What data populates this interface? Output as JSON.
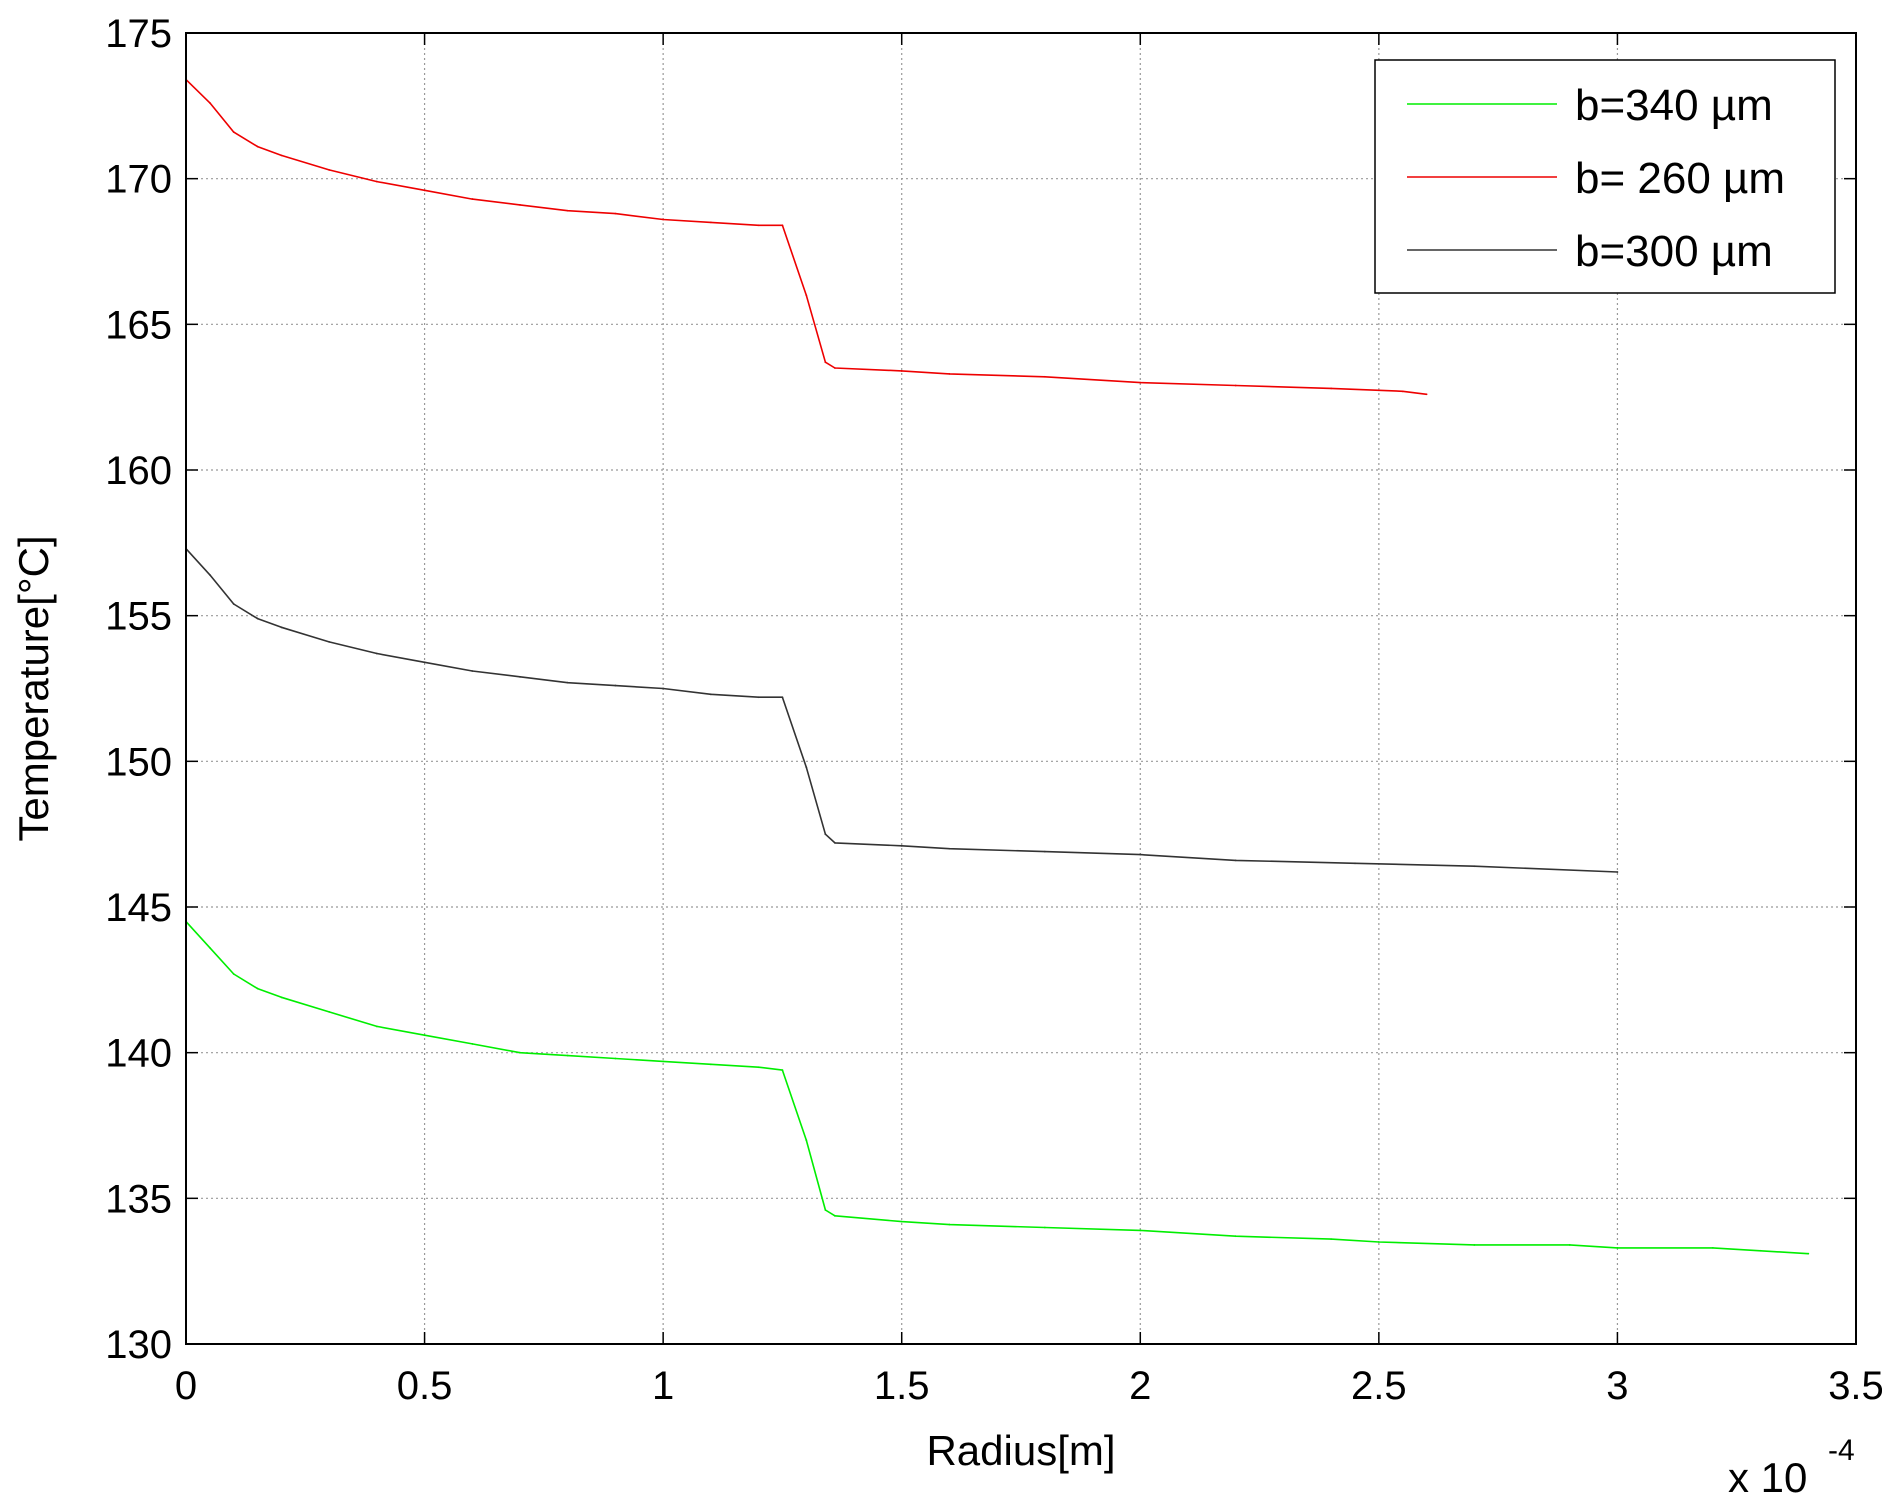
{
  "chart_data": {
    "type": "line",
    "title": "",
    "xlabel": "Radius[m]",
    "ylabel": "Temperature[°C]",
    "x_multiplier_text": "x 10",
    "x_multiplier_exp": "-4",
    "xlim": [
      0,
      3.5
    ],
    "ylim": [
      130,
      175
    ],
    "xticks": [
      0,
      0.5,
      1,
      1.5,
      2,
      2.5,
      3,
      3.5
    ],
    "xtick_labels": [
      "0",
      "0.5",
      "1",
      "1.5",
      "2",
      "2.5",
      "3",
      "3.5"
    ],
    "yticks": [
      130,
      135,
      140,
      145,
      150,
      155,
      160,
      165,
      170,
      175
    ],
    "ytick_labels": [
      "130",
      "135",
      "140",
      "145",
      "150",
      "155",
      "160",
      "165",
      "170",
      "175"
    ],
    "grid": true,
    "legend_position": "top-right",
    "series": [
      {
        "name": "b=340 µm",
        "color": "#00ee00",
        "x": [
          0,
          0.05,
          0.1,
          0.15,
          0.2,
          0.3,
          0.4,
          0.5,
          0.6,
          0.7,
          0.8,
          0.9,
          1.0,
          1.1,
          1.2,
          1.25,
          1.3,
          1.34,
          1.36,
          1.5,
          1.6,
          1.8,
          2.0,
          2.2,
          2.4,
          2.5,
          2.7,
          2.9,
          3.0,
          3.2,
          3.3,
          3.4
        ],
        "y": [
          144.5,
          143.6,
          142.7,
          142.2,
          141.9,
          141.4,
          140.9,
          140.6,
          140.3,
          140.0,
          139.9,
          139.8,
          139.7,
          139.6,
          139.5,
          139.4,
          137.0,
          134.6,
          134.4,
          134.2,
          134.1,
          134.0,
          133.9,
          133.7,
          133.6,
          133.5,
          133.4,
          133.4,
          133.3,
          133.3,
          133.2,
          133.1
        ]
      },
      {
        "name": "b= 260 µm",
        "color": "#ee0000",
        "x": [
          0,
          0.05,
          0.1,
          0.15,
          0.2,
          0.3,
          0.4,
          0.5,
          0.6,
          0.7,
          0.8,
          0.9,
          1.0,
          1.1,
          1.2,
          1.25,
          1.3,
          1.34,
          1.36,
          1.5,
          1.6,
          1.8,
          2.0,
          2.2,
          2.4,
          2.55,
          2.6
        ],
        "y": [
          173.4,
          172.6,
          171.6,
          171.1,
          170.8,
          170.3,
          169.9,
          169.6,
          169.3,
          169.1,
          168.9,
          168.8,
          168.6,
          168.5,
          168.4,
          168.4,
          166.0,
          163.7,
          163.5,
          163.4,
          163.3,
          163.2,
          163.0,
          162.9,
          162.8,
          162.7,
          162.6
        ]
      },
      {
        "name": "b=300 µm",
        "color": "#333333",
        "x": [
          0,
          0.05,
          0.1,
          0.15,
          0.2,
          0.3,
          0.4,
          0.5,
          0.6,
          0.7,
          0.8,
          0.9,
          1.0,
          1.1,
          1.2,
          1.25,
          1.3,
          1.34,
          1.36,
          1.5,
          1.6,
          1.8,
          2.0,
          2.2,
          2.45,
          2.7,
          3.0
        ],
        "y": [
          157.3,
          156.4,
          155.4,
          154.9,
          154.6,
          154.1,
          153.7,
          153.4,
          153.1,
          152.9,
          152.7,
          152.6,
          152.5,
          152.3,
          152.2,
          152.2,
          149.8,
          147.5,
          147.2,
          147.1,
          147.0,
          146.9,
          146.8,
          146.6,
          146.5,
          146.4,
          146.2
        ]
      }
    ]
  }
}
